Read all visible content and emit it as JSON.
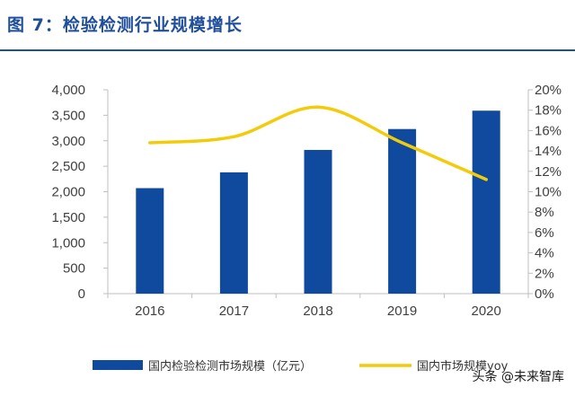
{
  "figure": {
    "title": "图 7：检验检测行业规模增长"
  },
  "colors": {
    "title": "#1f4e9a",
    "bar": "#0f4a9e",
    "line": "#f2cc0c",
    "axis": "#bfbfbf",
    "text": "#404040"
  },
  "watermark": "头条 @未来智库",
  "chart_data": {
    "type": "bar",
    "categories": [
      "2016",
      "2017",
      "2018",
      "2019",
      "2020"
    ],
    "series": [
      {
        "name": "国内检验检测市场规模（亿元）",
        "type": "bar",
        "axis": "left",
        "values": [
          2070,
          2380,
          2820,
          3230,
          3590
        ]
      },
      {
        "name": "国内市场规模yoy",
        "type": "line",
        "axis": "right",
        "values": [
          14.8,
          15.4,
          18.3,
          14.8,
          11.2
        ]
      }
    ],
    "y_left": {
      "ylim": [
        0,
        4000
      ],
      "ticks": [
        0,
        500,
        1000,
        1500,
        2000,
        2500,
        3000,
        3500,
        4000
      ],
      "tick_labels": [
        "0",
        "500",
        "1,000",
        "1,500",
        "2,000",
        "2,500",
        "3,000",
        "3,500",
        "4,000"
      ]
    },
    "y_right": {
      "ylim": [
        0,
        20
      ],
      "ticks": [
        0,
        2,
        4,
        6,
        8,
        10,
        12,
        14,
        16,
        18,
        20
      ],
      "tick_labels": [
        "0%",
        "2%",
        "4%",
        "6%",
        "8%",
        "10%",
        "12%",
        "14%",
        "16%",
        "18%",
        "20%"
      ]
    },
    "grid": false,
    "legend": "bottom"
  }
}
